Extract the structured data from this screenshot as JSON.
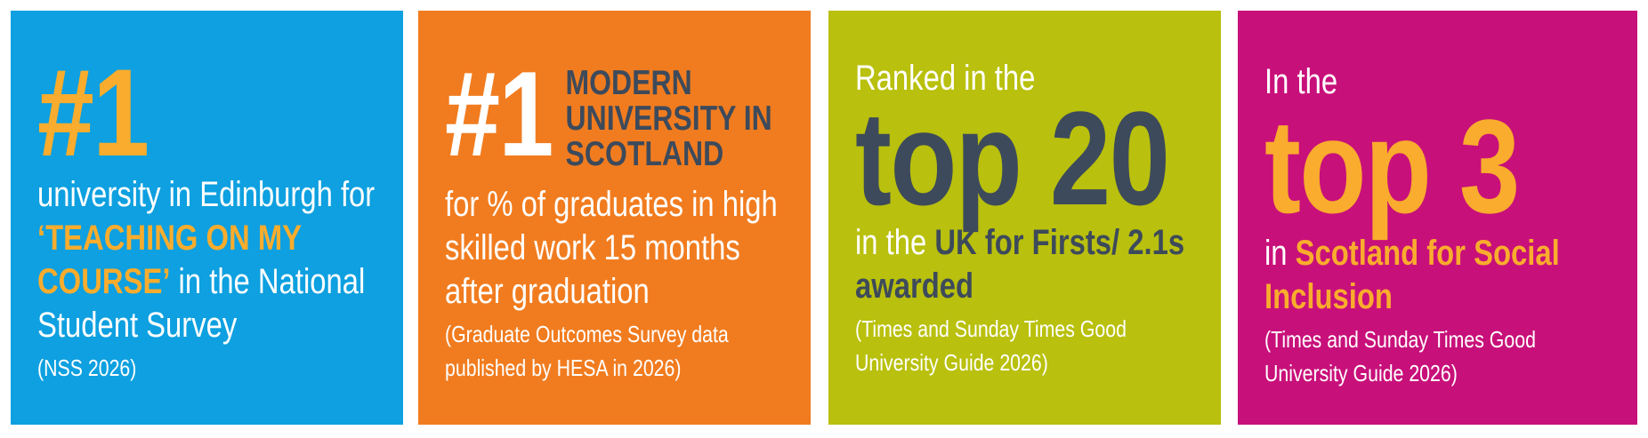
{
  "panels": [
    {
      "big": "#1",
      "body_start": "university in Edinburgh for ",
      "highlight": "‘TEACHING ON MY COURSE’",
      "body_end": " in the National Student Survey",
      "note": "(NSS 2026)"
    },
    {
      "big": "#1",
      "heading": "MODERN UNIVERSITY IN SCOTLAND",
      "body": "for % of graduates in high skilled work 15 months after graduation",
      "note": "(Graduate Outcomes Survey data published by HESA in 2026)"
    },
    {
      "intro": "Ranked in the",
      "big": "top 20",
      "body_start": "in the ",
      "highlight": "UK for Firsts/ 2.1s awarded",
      "note": "(Times and Sunday Times Good University Guide 2026)"
    },
    {
      "intro": "In the",
      "big": "top 3",
      "body_start": "in ",
      "highlight": "Scotland for Social Inclusion",
      "note": "(Times and Sunday Times Good University Guide 2026)"
    }
  ]
}
